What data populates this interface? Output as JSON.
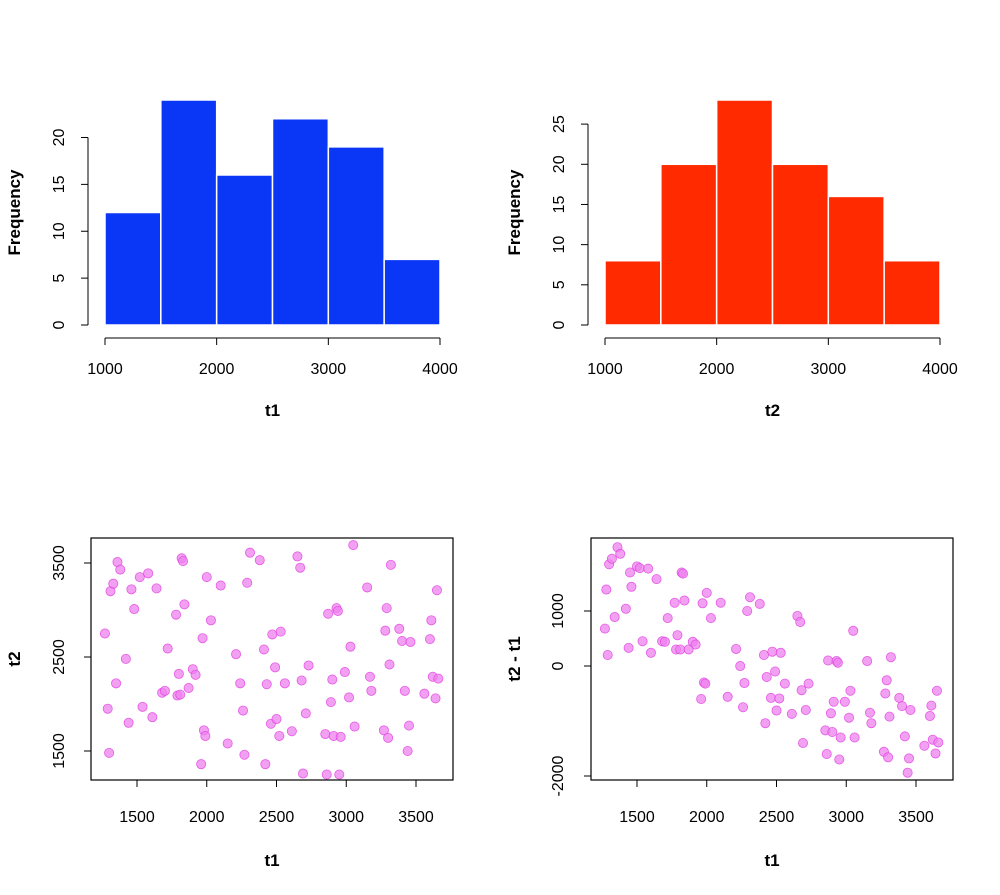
{
  "colors": {
    "hist1_fill": "#0a36f5",
    "hist2_fill": "#ff2a00",
    "bar_border": "#ffffff",
    "point_fill": "#ee82ee",
    "point_stroke": "#e040e0",
    "axis": "#000000"
  },
  "chart_data": [
    {
      "id": "hist_t1",
      "type": "bar",
      "title": "",
      "xlabel": "t1",
      "ylabel": "Frequency",
      "bins": [
        [
          1000,
          1500
        ],
        [
          1500,
          2000
        ],
        [
          2000,
          2500
        ],
        [
          2500,
          3000
        ],
        [
          3000,
          3500
        ],
        [
          3500,
          4000
        ]
      ],
      "values": [
        12,
        24,
        16,
        22,
        19,
        7
      ],
      "xlim": [
        1000,
        4000
      ],
      "ylim": [
        0,
        24
      ],
      "x_ticks": [
        1000,
        2000,
        3000,
        4000
      ],
      "x_tick_labels": [
        "1000",
        "2000",
        "3000",
        "4000"
      ],
      "y_ticks": [
        0,
        5,
        10,
        15,
        20
      ],
      "y_tick_labels": [
        "0",
        "5",
        "10",
        "15",
        "20"
      ],
      "grid": false,
      "legend": "none"
    },
    {
      "id": "hist_t2",
      "type": "bar",
      "title": "",
      "xlabel": "t2",
      "ylabel": "Frequency",
      "bins": [
        [
          1000,
          1500
        ],
        [
          1500,
          2000
        ],
        [
          2000,
          2500
        ],
        [
          2500,
          3000
        ],
        [
          3000,
          3500
        ],
        [
          3500,
          4000
        ]
      ],
      "values": [
        8,
        20,
        28,
        20,
        16,
        8
      ],
      "xlim": [
        1000,
        4000
      ],
      "ylim": [
        0,
        28
      ],
      "x_ticks": [
        1000,
        2000,
        3000,
        4000
      ],
      "x_tick_labels": [
        "1000",
        "2000",
        "3000",
        "4000"
      ],
      "y_ticks": [
        0,
        5,
        10,
        15,
        20,
        25
      ],
      "y_tick_labels": [
        "0",
        "5",
        "10",
        "15",
        "20",
        "25"
      ],
      "grid": false,
      "legend": "none"
    },
    {
      "id": "scatter_t1_t2",
      "type": "scatter",
      "title": "",
      "xlabel": "t1",
      "ylabel": "t2",
      "xlim": [
        1200,
        3700
      ],
      "ylim": [
        1150,
        3800
      ],
      "x_ticks": [
        1500,
        2000,
        2500,
        3000,
        3500
      ],
      "x_tick_labels": [
        "1500",
        "2000",
        "2500",
        "3000",
        "3500"
      ],
      "y_ticks": [
        1500,
        2500,
        3500
      ],
      "y_tick_labels": [
        "1500",
        "2500",
        "3500"
      ],
      "grid": false,
      "legend": "none",
      "points": [
        [
          1270,
          2750
        ],
        [
          1290,
          1950
        ],
        [
          1300,
          1480
        ],
        [
          1310,
          3200
        ],
        [
          1330,
          3280
        ],
        [
          1350,
          2220
        ],
        [
          1360,
          3510
        ],
        [
          1380,
          3430
        ],
        [
          1420,
          2480
        ],
        [
          1440,
          1800
        ],
        [
          1460,
          3220
        ],
        [
          1480,
          3010
        ],
        [
          1520,
          3350
        ],
        [
          1540,
          1970
        ],
        [
          1580,
          3390
        ],
        [
          1610,
          1860
        ],
        [
          1640,
          3230
        ],
        [
          1680,
          2120
        ],
        [
          1700,
          2140
        ],
        [
          1720,
          2590
        ],
        [
          1780,
          2950
        ],
        [
          1790,
          2090
        ],
        [
          1800,
          2320
        ],
        [
          1810,
          2100
        ],
        [
          1820,
          3550
        ],
        [
          1830,
          3520
        ],
        [
          1840,
          3060
        ],
        [
          1870,
          2170
        ],
        [
          1900,
          2370
        ],
        [
          1920,
          2310
        ],
        [
          1960,
          1360
        ],
        [
          1970,
          2700
        ],
        [
          1980,
          1720
        ],
        [
          1990,
          1660
        ],
        [
          2000,
          3350
        ],
        [
          2030,
          2890
        ],
        [
          2100,
          3260
        ],
        [
          2150,
          1580
        ],
        [
          2210,
          2530
        ],
        [
          2240,
          2220
        ],
        [
          2260,
          1930
        ],
        [
          2270,
          1460
        ],
        [
          2290,
          3290
        ],
        [
          2310,
          3610
        ],
        [
          2380,
          3530
        ],
        [
          2410,
          2580
        ],
        [
          2420,
          1360
        ],
        [
          2430,
          2210
        ],
        [
          2460,
          1790
        ],
        [
          2470,
          2740
        ],
        [
          2490,
          2390
        ],
        [
          2500,
          1840
        ],
        [
          2520,
          1660
        ],
        [
          2530,
          2770
        ],
        [
          2560,
          2220
        ],
        [
          2610,
          1710
        ],
        [
          2650,
          3570
        ],
        [
          2670,
          3450
        ],
        [
          2680,
          2250
        ],
        [
          2690,
          1260
        ],
        [
          2710,
          1900
        ],
        [
          2730,
          2410
        ],
        [
          2850,
          1680
        ],
        [
          2860,
          1250
        ],
        [
          2870,
          2960
        ],
        [
          2890,
          2020
        ],
        [
          2900,
          2260
        ],
        [
          2910,
          1660
        ],
        [
          2930,
          3020
        ],
        [
          2940,
          2990
        ],
        [
          2950,
          1250
        ],
        [
          2960,
          1650
        ],
        [
          2990,
          2340
        ],
        [
          3020,
          2070
        ],
        [
          3030,
          2610
        ],
        [
          3050,
          3690
        ],
        [
          3060,
          1760
        ],
        [
          3150,
          3240
        ],
        [
          3170,
          2290
        ],
        [
          3180,
          2140
        ],
        [
          3270,
          1720
        ],
        [
          3280,
          2780
        ],
        [
          3290,
          3020
        ],
        [
          3300,
          1640
        ],
        [
          3310,
          2420
        ],
        [
          3320,
          3480
        ],
        [
          3380,
          2800
        ],
        [
          3400,
          2670
        ],
        [
          3420,
          2140
        ],
        [
          3440,
          1500
        ],
        [
          3450,
          1770
        ],
        [
          3460,
          2660
        ],
        [
          3560,
          2110
        ],
        [
          3600,
          2690
        ],
        [
          3610,
          2890
        ],
        [
          3620,
          2290
        ],
        [
          3640,
          2060
        ],
        [
          3650,
          3210
        ],
        [
          3660,
          2270
        ]
      ]
    },
    {
      "id": "scatter_t1_diff",
      "type": "scatter",
      "title": "",
      "xlabel": "t1",
      "ylabel": "t2 - t1",
      "xlim": [
        1200,
        3700
      ],
      "ylim": [
        -2100,
        2300
      ],
      "x_ticks": [
        1500,
        2000,
        2500,
        3000,
        3500
      ],
      "x_tick_labels": [
        "1500",
        "2000",
        "2500",
        "3000",
        "3500"
      ],
      "y_ticks": [
        -2000,
        0,
        1000
      ],
      "y_tick_labels": [
        "-2000",
        "0",
        "1000"
      ],
      "grid": false,
      "legend": "none",
      "points": [
        [
          1270,
          680
        ],
        [
          1280,
          1390
        ],
        [
          1290,
          200
        ],
        [
          1300,
          1850
        ],
        [
          1320,
          1950
        ],
        [
          1340,
          890
        ],
        [
          1360,
          2160
        ],
        [
          1380,
          2040
        ],
        [
          1420,
          1040
        ],
        [
          1440,
          330
        ],
        [
          1450,
          1700
        ],
        [
          1460,
          1440
        ],
        [
          1500,
          1810
        ],
        [
          1520,
          1780
        ],
        [
          1540,
          450
        ],
        [
          1580,
          1770
        ],
        [
          1600,
          240
        ],
        [
          1640,
          1580
        ],
        [
          1680,
          450
        ],
        [
          1700,
          440
        ],
        [
          1720,
          870
        ],
        [
          1770,
          1150
        ],
        [
          1780,
          300
        ],
        [
          1790,
          560
        ],
        [
          1810,
          300
        ],
        [
          1820,
          1700
        ],
        [
          1830,
          1680
        ],
        [
          1840,
          1190
        ],
        [
          1870,
          300
        ],
        [
          1900,
          440
        ],
        [
          1920,
          390
        ],
        [
          1960,
          -600
        ],
        [
          1970,
          1140
        ],
        [
          1980,
          -300
        ],
        [
          1990,
          -320
        ],
        [
          2000,
          1330
        ],
        [
          2030,
          870
        ],
        [
          2100,
          1150
        ],
        [
          2150,
          -560
        ],
        [
          2210,
          310
        ],
        [
          2240,
          -1
        ],
        [
          2260,
          -750
        ],
        [
          2270,
          -310
        ],
        [
          2290,
          1000
        ],
        [
          2310,
          1250
        ],
        [
          2380,
          1130
        ],
        [
          2410,
          200
        ],
        [
          2420,
          -1040
        ],
        [
          2430,
          -200
        ],
        [
          2460,
          -580
        ],
        [
          2470,
          260
        ],
        [
          2490,
          -100
        ],
        [
          2500,
          -810
        ],
        [
          2520,
          -590
        ],
        [
          2530,
          240
        ],
        [
          2560,
          -320
        ],
        [
          2610,
          -870
        ],
        [
          2650,
          910
        ],
        [
          2670,
          800
        ],
        [
          2680,
          -440
        ],
        [
          2690,
          -1400
        ],
        [
          2710,
          -800
        ],
        [
          2730,
          -320
        ],
        [
          2850,
          -1170
        ],
        [
          2860,
          -1600
        ],
        [
          2870,
          100
        ],
        [
          2890,
          -860
        ],
        [
          2900,
          -1200
        ],
        [
          2910,
          -650
        ],
        [
          2930,
          90
        ],
        [
          2940,
          60
        ],
        [
          2950,
          -1700
        ],
        [
          2960,
          -1300
        ],
        [
          2990,
          -650
        ],
        [
          3020,
          -940
        ],
        [
          3030,
          -450
        ],
        [
          3050,
          640
        ],
        [
          3060,
          -1300
        ],
        [
          3150,
          90
        ],
        [
          3170,
          -850
        ],
        [
          3180,
          -1040
        ],
        [
          3270,
          -1560
        ],
        [
          3280,
          -500
        ],
        [
          3290,
          -260
        ],
        [
          3300,
          -1660
        ],
        [
          3310,
          -920
        ],
        [
          3320,
          160
        ],
        [
          3380,
          -580
        ],
        [
          3400,
          -730
        ],
        [
          3420,
          -1280
        ],
        [
          3440,
          -1940
        ],
        [
          3450,
          -1680
        ],
        [
          3460,
          -800
        ],
        [
          3560,
          -1450
        ],
        [
          3600,
          -910
        ],
        [
          3610,
          -720
        ],
        [
          3620,
          -1340
        ],
        [
          3640,
          -1590
        ],
        [
          3650,
          -450
        ],
        [
          3660,
          -1390
        ]
      ]
    }
  ]
}
